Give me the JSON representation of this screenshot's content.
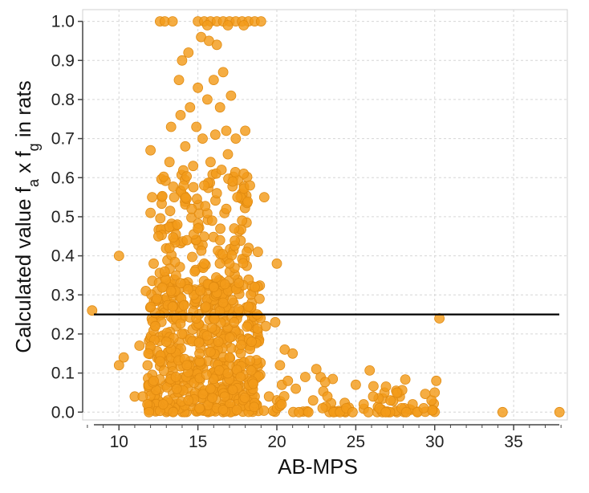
{
  "chart_data": {
    "type": "scatter",
    "title": "",
    "xlabel": "AB-MPS",
    "ylabel": "Calculated value f_a x f_g in rats",
    "ylabel_parts": {
      "pre": "Calculated value f",
      "sub1": "a",
      "mid": " x f",
      "sub2": "g",
      "post": " in rats"
    },
    "xlim": [
      7.7,
      38.4
    ],
    "ylim": [
      -0.02,
      1.03
    ],
    "x_ticks": [
      10,
      15,
      20,
      25,
      30,
      35
    ],
    "x_tick_labels": [
      "10",
      "15",
      "20",
      "25",
      "30",
      "35"
    ],
    "y_ticks": [
      0.0,
      0.1,
      0.2,
      0.3,
      0.4,
      0.5,
      0.6,
      0.7,
      0.8,
      0.9,
      1.0
    ],
    "y_tick_labels": [
      "0.0",
      "0.1",
      "0.2",
      "0.3",
      "0.4",
      "0.5",
      "0.6",
      "0.7",
      "0.8",
      "0.9",
      "1.0"
    ],
    "grid": true,
    "legend": "none",
    "reference_line": {
      "y": 0.25,
      "color": "#000000"
    },
    "marker_color": "#F39B1A",
    "marker_edge_color": "#E08A10",
    "series": [
      {
        "points": [
          [
            8.3,
            0.26
          ],
          [
            10.0,
            0.4
          ],
          [
            10.0,
            0.12
          ],
          [
            10.3,
            0.14
          ],
          [
            11.0,
            0.04
          ],
          [
            11.3,
            0.17
          ],
          [
            11.5,
            0.04
          ],
          [
            11.7,
            0.31
          ],
          [
            11.8,
            0.02
          ],
          [
            11.9,
            0.0
          ],
          [
            12.0,
            0.67
          ],
          [
            12.1,
            0.55
          ],
          [
            12.0,
            0.51
          ],
          [
            12.2,
            0.38
          ],
          [
            12.3,
            0.22
          ],
          [
            12.2,
            0.08
          ],
          [
            12.4,
            0.29
          ],
          [
            12.5,
            0.45
          ],
          [
            12.6,
            0.13
          ],
          [
            12.8,
            0.02
          ],
          [
            12.9,
            0.36
          ],
          [
            13.0,
            0.18
          ],
          [
            12.6,
            1.0
          ],
          [
            12.9,
            1.0
          ],
          [
            13.4,
            1.0
          ],
          [
            13.2,
            0.64
          ],
          [
            13.3,
            0.73
          ],
          [
            13.5,
            0.55
          ],
          [
            13.2,
            0.42
          ],
          [
            13.4,
            0.27
          ],
          [
            13.6,
            0.09
          ],
          [
            13.8,
            0.85
          ],
          [
            13.9,
            0.76
          ],
          [
            13.7,
            0.48
          ],
          [
            13.9,
            0.33
          ],
          [
            14.0,
            0.9
          ],
          [
            14.0,
            0.2
          ],
          [
            14.1,
            0.58
          ],
          [
            14.2,
            0.68
          ],
          [
            14.3,
            0.44
          ],
          [
            14.4,
            0.92
          ],
          [
            14.3,
            0.12
          ],
          [
            14.4,
            0.03
          ],
          [
            14.5,
            0.78
          ],
          [
            14.6,
            0.52
          ],
          [
            14.7,
            0.63
          ],
          [
            14.8,
            0.36
          ],
          [
            14.9,
            0.24
          ],
          [
            14.9,
            0.73
          ],
          [
            15.0,
            0.83
          ],
          [
            15.0,
            0.47
          ],
          [
            15.1,
            0.15
          ],
          [
            15.1,
            0.01
          ],
          [
            15.2,
            0.96
          ],
          [
            15.3,
            0.7
          ],
          [
            15.4,
            0.58
          ],
          [
            15.4,
            0.38
          ],
          [
            15.5,
            0.27
          ],
          [
            15.6,
            0.8
          ],
          [
            15.7,
            0.95
          ],
          [
            15.8,
            0.64
          ],
          [
            15.8,
            0.06
          ],
          [
            15.9,
            0.49
          ],
          [
            16.0,
            0.85
          ],
          [
            16.0,
            0.32
          ],
          [
            16.1,
            0.71
          ],
          [
            16.2,
            0.94
          ],
          [
            16.2,
            0.56
          ],
          [
            16.3,
            0.18
          ],
          [
            16.4,
            0.78
          ],
          [
            16.4,
            0.44
          ],
          [
            16.5,
            0.62
          ],
          [
            16.6,
            0.87
          ],
          [
            16.6,
            0.28
          ],
          [
            16.7,
            0.04
          ],
          [
            16.8,
            0.72
          ],
          [
            16.8,
            0.52
          ],
          [
            16.9,
            0.66
          ],
          [
            17.0,
            0.38
          ],
          [
            17.0,
            0.14
          ],
          [
            17.1,
            0.81
          ],
          [
            17.2,
            0.59
          ],
          [
            17.3,
            0.47
          ],
          [
            17.3,
            0.23
          ],
          [
            17.4,
            0.7
          ],
          [
            17.5,
            0.55
          ],
          [
            17.6,
            0.33
          ],
          [
            17.7,
            0.09
          ],
          [
            17.8,
            0.49
          ],
          [
            17.9,
            0.61
          ],
          [
            18.0,
            0.72
          ],
          [
            18.1,
            0.41
          ],
          [
            18.2,
            0.27
          ],
          [
            18.3,
            0.58
          ],
          [
            18.4,
            0.18
          ],
          [
            18.6,
            0.32
          ],
          [
            18.8,
            0.41
          ],
          [
            18.9,
            0.29
          ],
          [
            19.2,
            0.55
          ],
          [
            19.3,
            0.22
          ],
          [
            19.5,
            0.04
          ],
          [
            19.9,
            0.23
          ],
          [
            20.0,
            0.38
          ],
          [
            20.2,
            0.12
          ],
          [
            20.3,
            0.02
          ],
          [
            20.5,
            0.16
          ],
          [
            20.7,
            0.08
          ],
          [
            21.0,
            0.15
          ],
          [
            21.2,
            0.06
          ],
          [
            21.4,
            0.0
          ],
          [
            21.8,
            0.09
          ],
          [
            22.0,
            0.0
          ],
          [
            22.3,
            0.03
          ],
          [
            22.5,
            0.11
          ],
          [
            22.9,
            0.01
          ],
          [
            23.2,
            0.04
          ],
          [
            23.6,
            0.0
          ],
          [
            24.0,
            0.0
          ],
          [
            24.4,
            0.01
          ],
          [
            24.8,
            0.0
          ],
          [
            25.0,
            0.07
          ],
          [
            25.5,
            0.02
          ],
          [
            25.8,
            0.0
          ],
          [
            26.1,
            0.04
          ],
          [
            26.5,
            0.01
          ],
          [
            26.9,
            0.0
          ],
          [
            27.2,
            0.03
          ],
          [
            27.6,
            0.05
          ],
          [
            27.9,
            0.01
          ],
          [
            28.2,
            0.0
          ],
          [
            28.6,
            0.02
          ],
          [
            28.9,
            0.0
          ],
          [
            29.3,
            0.01
          ],
          [
            29.8,
            0.03
          ],
          [
            30.0,
            0.05
          ],
          [
            30.1,
            0.08
          ],
          [
            30.3,
            0.24
          ],
          [
            34.3,
            0.0
          ],
          [
            37.9,
            0.0
          ],
          [
            15.0,
            1.0
          ],
          [
            15.4,
            1.0
          ],
          [
            15.8,
            1.0
          ],
          [
            16.2,
            1.0
          ],
          [
            16.6,
            1.0
          ],
          [
            17.0,
            1.0
          ],
          [
            17.4,
            1.0
          ],
          [
            17.8,
            1.0
          ],
          [
            18.2,
            1.0
          ],
          [
            18.6,
            1.0
          ],
          [
            19.0,
            1.0
          ],
          [
            15.6,
            0.99
          ],
          [
            16.9,
            0.99
          ],
          [
            17.9,
            0.99
          ]
        ]
      }
    ]
  }
}
